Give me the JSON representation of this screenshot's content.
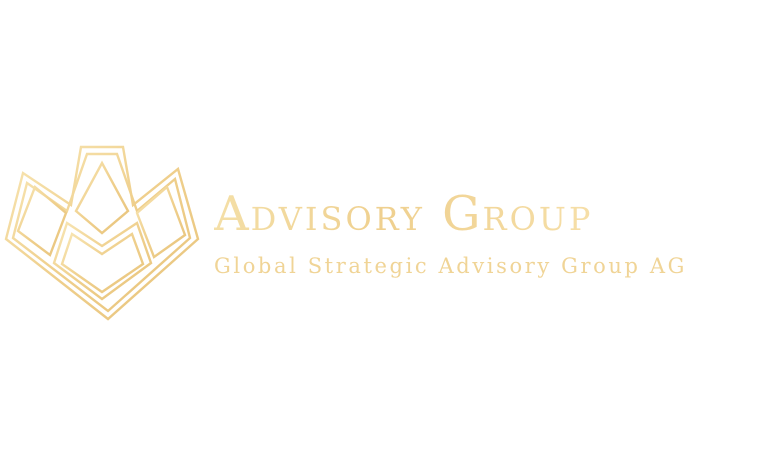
{
  "brand": {
    "name_initial_1": "A",
    "name_rest_1": "DVISORY",
    "name_initial_2": "G",
    "name_rest_2": "ROUP",
    "tagline": "Global Strategic Advisory Group AG"
  },
  "emblem": {
    "icon": "geometric-gold-crown-logo-icon"
  },
  "colors": {
    "background": "#ffffff",
    "gold_light": "#f8e6b4",
    "gold_mid": "#efcf8c",
    "gold_dark": "#e3bd72"
  }
}
